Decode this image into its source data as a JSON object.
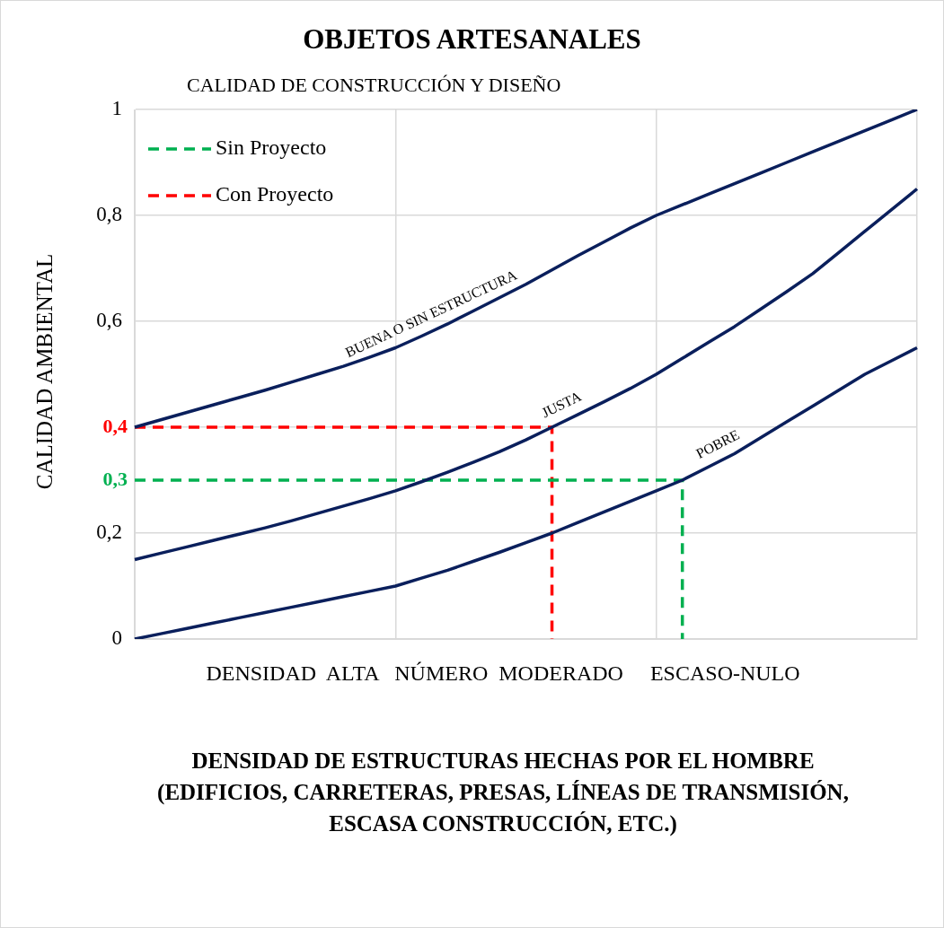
{
  "chart_data": {
    "type": "line",
    "title": "OBJETOS ARTESANALES",
    "subtitle": "CALIDAD DE CONSTRUCCIÓN Y DISEÑO",
    "xlabel": "DENSIDAD DE ESTRUCTURAS HECHAS POR EL HOMBRE (EDIFICIOS, CARRETERAS, PRESAS, LÍNEAS DE TRANSMISIÓN, ESCASA CONSTRUCCIÓN, ETC.)",
    "ylabel": "CALIDAD AMBIENTAL",
    "categories": [
      null,
      null,
      null,
      null,
      null,
      null,
      null,
      null,
      null,
      null,
      null,
      null,
      null,
      null,
      null,
      null,
      null,
      null,
      null,
      null,
      null,
      null,
      null,
      null,
      null,
      null,
      null,
      null,
      null,
      null,
      null
    ],
    "ylim": [
      0,
      1
    ],
    "yticks": [
      {
        "value": 0,
        "label": "0"
      },
      {
        "value": 0.2,
        "label": "0,2"
      },
      {
        "value": 0.4,
        "label": null
      },
      {
        "value": 0.6,
        "label": "0,6"
      },
      {
        "value": 0.8,
        "label": "0,8"
      },
      {
        "value": 1,
        "label": "1"
      }
    ],
    "grid": true,
    "legend": "top left",
    "marker": "none",
    "series": [
      {
        "name": "BUENA O SIN ESTRUCTURA",
        "color": "#0a1f5c",
        "values": [
          0.4,
          0.414,
          0.428,
          0.442,
          0.456,
          0.47,
          0.485,
          0.5,
          0.515,
          0.532,
          0.55,
          0.572,
          0.595,
          0.62,
          0.645,
          0.67,
          0.697,
          0.724,
          0.75,
          0.776,
          0.8,
          0.82,
          0.84,
          0.86,
          0.88,
          0.9,
          0.92,
          0.94,
          0.96,
          0.98,
          1.0
        ]
      },
      {
        "name": "JUSTA",
        "color": "#0a1f5c",
        "values": [
          0.15,
          0.162,
          0.174,
          0.186,
          0.198,
          0.21,
          0.223,
          0.237,
          0.251,
          0.265,
          0.28,
          0.297,
          0.315,
          0.334,
          0.354,
          0.376,
          0.4,
          0.424,
          0.448,
          0.473,
          0.5,
          0.53,
          0.56,
          0.59,
          0.623,
          0.656,
          0.69,
          0.73,
          0.77,
          0.81,
          0.85
        ]
      },
      {
        "name": "POBRE",
        "color": "#0a1f5c",
        "values": [
          0,
          0.01,
          0.02,
          0.03,
          0.04,
          0.05,
          0.06,
          0.07,
          0.08,
          0.09,
          0.1,
          0.115,
          0.13,
          0.147,
          0.164,
          0.182,
          0.2,
          0.22,
          0.24,
          0.26,
          0.28,
          0.3,
          0.325,
          0.35,
          0.38,
          0.41,
          0.44,
          0.47,
          0.5,
          0.525,
          0.55
        ]
      },
      {
        "name": "Sin Proyecto",
        "type": "step",
        "color": "#00b050",
        "line_style": "dashed",
        "values": [
          0.3,
          0.3,
          0.3,
          0.3,
          0.3,
          0.3,
          0.3,
          0.3,
          0.3,
          0.3,
          0.3,
          0.3,
          0.3,
          0.3,
          0.3,
          0.3,
          0.3,
          0.3,
          0.3,
          0.3,
          0.3,
          0,
          null,
          null,
          null,
          null,
          null,
          null,
          null,
          null,
          null
        ],
        "value_labels": [
          "0,3",
          null,
          null,
          null,
          null,
          null,
          null,
          null,
          null,
          null,
          null,
          null,
          null,
          null,
          null,
          null,
          null,
          null,
          null,
          null,
          null,
          null,
          null,
          null,
          null,
          null,
          null,
          null,
          null,
          null,
          null
        ]
      },
      {
        "name": "Con Proyecto",
        "type": "step",
        "color": "#ff0000",
        "line_style": "dashed",
        "values": [
          0.4,
          0.4,
          0.4,
          0.4,
          0.4,
          0.4,
          0.4,
          0.4,
          0.4,
          0.4,
          0.4,
          0.4,
          0.4,
          0.4,
          0.4,
          0.4,
          0,
          null,
          null,
          null,
          null,
          null,
          null,
          null,
          null,
          null,
          null,
          null,
          null,
          null,
          null
        ],
        "value_labels": [
          "0,4",
          null,
          null,
          null,
          null,
          null,
          null,
          null,
          null,
          null,
          null,
          null,
          null,
          null,
          null,
          null,
          null,
          null,
          null,
          null,
          null,
          null,
          null,
          null,
          null,
          null,
          null,
          null,
          null,
          null,
          null
        ]
      }
    ],
    "annotations": [
      "DENSIDAD  ALTA   NÚMERO  MODERADO     ESCASO-NULO"
    ]
  }
}
